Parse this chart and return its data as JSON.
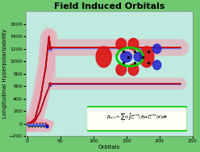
{
  "title": "Field Induced Orbitals",
  "xlabel": "Orbitals",
  "ylabel": "Longitudinal Hyperpolarizability",
  "xlim": [
    -2,
    250
  ],
  "ylim": [
    -200,
    1800
  ],
  "yticks": [
    -200,
    0,
    200,
    400,
    600,
    800,
    1000,
    1200,
    1400,
    1600
  ],
  "xticks": [
    0,
    50,
    100,
    150,
    200,
    250
  ],
  "background_outer": "#70c870",
  "background_inner": "#c0eae0",
  "spike_x": 35,
  "plateau_high": 1220,
  "plateau_mid": 640,
  "plateau_end": 232,
  "title_fontsize": 8,
  "axis_fontsize": 5,
  "tick_fontsize": 4.5,
  "lw_band": 6,
  "lw_main": 1.2
}
